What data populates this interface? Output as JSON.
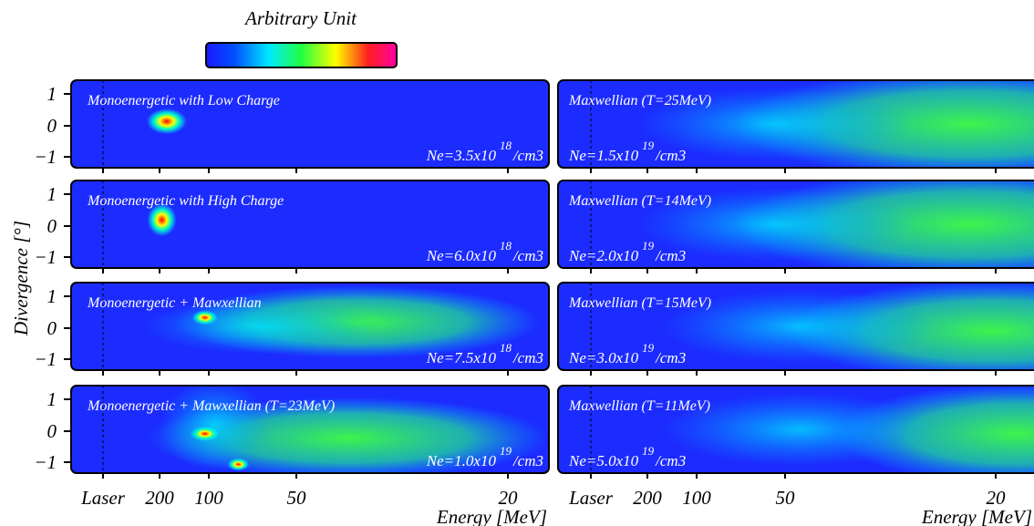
{
  "colorbar": {
    "label": "Arbitrary Unit"
  },
  "y_axis_label": "Divergence [°]",
  "x_axis_label": "Energy [MeV]",
  "y_tick_labels": [
    "1",
    "0",
    "−1"
  ],
  "x_tick_labels": [
    "Laser",
    "200",
    "100",
    "50",
    "20"
  ],
  "panels": [
    {
      "title": "Monoenergetic with Low Charge",
      "density": "Ne=3.5x10",
      "exponent": "18",
      "unit": "/cm3"
    },
    {
      "title": "Monoenergetic with High Charge",
      "density": "Ne=6.0x10",
      "exponent": "18",
      "unit": "/cm3"
    },
    {
      "title": "Monoenergetic + Mawxellian",
      "density": "Ne=7.5x10",
      "exponent": "18",
      "unit": "/cm3"
    },
    {
      "title": "Monoenergetic + Mawxellian (T=23MeV)",
      "density": "Ne=1.0x10",
      "exponent": "19",
      "unit": "/cm3"
    },
    {
      "title": "Maxwellian (T=25MeV)",
      "density": "Ne=1.5x10",
      "exponent": "19",
      "unit": "/cm3"
    },
    {
      "title": "Maxwellian (T=14MeV)",
      "density": "Ne=2.0x10",
      "exponent": "19",
      "unit": "/cm3"
    },
    {
      "title": "Maxwellian (T=15MeV)",
      "density": "Ne=3.0x10",
      "exponent": "19",
      "unit": "/cm3"
    },
    {
      "title": "Maxwellian (T=11MeV)",
      "density": "Ne=5.0x10",
      "exponent": "19",
      "unit": "/cm3"
    }
  ]
}
